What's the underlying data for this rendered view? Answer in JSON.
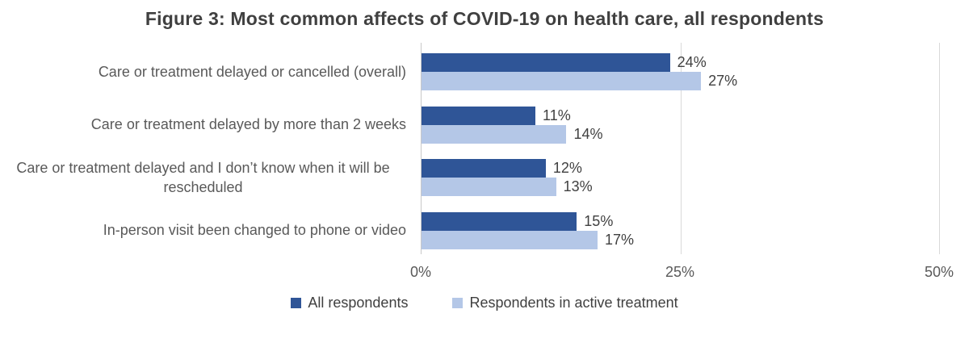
{
  "title": "Figure 3: Most common affects of COVID-19 on health care, all respondents",
  "colors": {
    "dark_blue": "#2F5597",
    "light_blue": "#B4C7E7",
    "title_text": "#404040",
    "label_text": "#595959",
    "gridline": "#D9D9D9"
  },
  "chart_data": {
    "type": "bar",
    "orientation": "horizontal",
    "title": "Figure 3: Most common affects of COVID-19 on health care, all respondents",
    "categories": [
      "Care or treatment delayed or cancelled (overall)",
      "Care or treatment delayed by more than 2 weeks",
      "Care or treatment delayed and I don’t know when it will be rescheduled",
      "In-person visit been changed to phone or video"
    ],
    "series": [
      {
        "name": "All respondents",
        "color": "#2F5597",
        "values": [
          24,
          11,
          12,
          15
        ]
      },
      {
        "name": "Respondents in active treatment",
        "color": "#B4C7E7",
        "values": [
          27,
          14,
          13,
          17
        ]
      }
    ],
    "value_suffix": "%",
    "xlim": [
      0,
      50
    ],
    "x_ticks": [
      "0%",
      "25%",
      "50%"
    ],
    "grid": "vertical",
    "legend_position": "bottom"
  }
}
